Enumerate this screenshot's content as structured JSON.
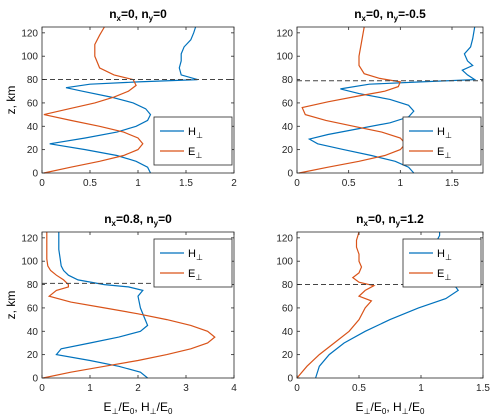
{
  "colors": {
    "H": "#0072BD",
    "E": "#D95319",
    "ref": "#444444",
    "axis": "#262626"
  },
  "chart_data": [
    {
      "type": "line",
      "title": {
        "base1": "n",
        "sub1": "x",
        "mid": "=0, n",
        "sub2": "y",
        "tail": "=0"
      },
      "ylabel": "z, km",
      "xlabel": "",
      "xlim": [
        0,
        2
      ],
      "ylim": [
        0,
        125
      ],
      "xticks": [
        "0",
        "0.5",
        "1",
        "1.5",
        "2"
      ],
      "yticks": [
        "0",
        "20",
        "40",
        "60",
        "80",
        "100",
        "120"
      ],
      "ref_line_z": 80,
      "legend": [
        {
          "base": "H",
          "sub": "⊥"
        },
        {
          "base": "E",
          "sub": "⊥"
        }
      ],
      "series": [
        {
          "key": "H",
          "points": [
            [
              1.13,
              0
            ],
            [
              1.1,
              5
            ],
            [
              0.98,
              10
            ],
            [
              0.78,
              15
            ],
            [
              0.45,
              20
            ],
            [
              0.08,
              25
            ],
            [
              0.45,
              30
            ],
            [
              0.78,
              35
            ],
            [
              0.98,
              40
            ],
            [
              1.1,
              45
            ],
            [
              1.13,
              50
            ],
            [
              1.08,
              55
            ],
            [
              0.95,
              60
            ],
            [
              0.72,
              65
            ],
            [
              0.42,
              70
            ],
            [
              0.25,
              73
            ],
            [
              0.5,
              76
            ],
            [
              1.0,
              78
            ],
            [
              1.62,
              80
            ],
            [
              1.45,
              84
            ],
            [
              1.43,
              90
            ],
            [
              1.45,
              96
            ],
            [
              1.45,
              102
            ],
            [
              1.48,
              108
            ],
            [
              1.55,
              114
            ],
            [
              1.58,
              120
            ],
            [
              1.6,
              125
            ]
          ]
        },
        {
          "key": "E",
          "points": [
            [
              0.02,
              0
            ],
            [
              0.3,
              5
            ],
            [
              0.6,
              10
            ],
            [
              0.85,
              15
            ],
            [
              1.0,
              20
            ],
            [
              1.05,
              25
            ],
            [
              1.0,
              30
            ],
            [
              0.85,
              35
            ],
            [
              0.6,
              40
            ],
            [
              0.3,
              45
            ],
            [
              0.02,
              50
            ],
            [
              0.28,
              55
            ],
            [
              0.55,
              60
            ],
            [
              0.75,
              65
            ],
            [
              0.9,
              70
            ],
            [
              0.98,
              75
            ],
            [
              0.95,
              80
            ],
            [
              0.75,
              84
            ],
            [
              0.6,
              90
            ],
            [
              0.55,
              100
            ],
            [
              0.55,
              110
            ],
            [
              0.6,
              118
            ],
            [
              0.65,
              125
            ]
          ]
        }
      ]
    },
    {
      "type": "line",
      "title": {
        "base1": "n",
        "sub1": "x",
        "mid": "=0, n",
        "sub2": "y",
        "tail": "=-0.5"
      },
      "ylabel": "",
      "xlabel": "",
      "xlim": [
        0,
        1.8
      ],
      "ylim": [
        0,
        125
      ],
      "xticks": [
        "0",
        "0.5",
        "1",
        "1.5"
      ],
      "yticks": [
        "0",
        "20",
        "40",
        "60",
        "80",
        "100",
        "120"
      ],
      "ref_line_z": 79,
      "legend": [
        {
          "base": "H",
          "sub": "⊥"
        },
        {
          "base": "E",
          "sub": "⊥"
        }
      ],
      "series": [
        {
          "key": "H",
          "points": [
            [
              1.13,
              0
            ],
            [
              1.08,
              5
            ],
            [
              0.95,
              10
            ],
            [
              0.72,
              15
            ],
            [
              0.45,
              20
            ],
            [
              0.2,
              25
            ],
            [
              0.12,
              29
            ],
            [
              0.3,
              33
            ],
            [
              0.6,
              38
            ],
            [
              0.9,
              43
            ],
            [
              1.08,
              48
            ],
            [
              1.13,
              53
            ],
            [
              1.08,
              58
            ],
            [
              0.9,
              63
            ],
            [
              0.6,
              68
            ],
            [
              0.42,
              72
            ],
            [
              0.7,
              76
            ],
            [
              1.2,
              78
            ],
            [
              1.72,
              80
            ],
            [
              1.65,
              84
            ],
            [
              1.6,
              88
            ],
            [
              1.7,
              92
            ],
            [
              1.65,
              96
            ],
            [
              1.62,
              102
            ],
            [
              1.68,
              108
            ],
            [
              1.7,
              115
            ],
            [
              1.72,
              125
            ]
          ]
        },
        {
          "key": "E",
          "points": [
            [
              0.02,
              0
            ],
            [
              0.3,
              5
            ],
            [
              0.6,
              10
            ],
            [
              0.85,
              15
            ],
            [
              1.0,
              20
            ],
            [
              1.05,
              25
            ],
            [
              1.0,
              30
            ],
            [
              0.82,
              35
            ],
            [
              0.55,
              40
            ],
            [
              0.28,
              45
            ],
            [
              0.08,
              50
            ],
            [
              0.05,
              56
            ],
            [
              0.3,
              61
            ],
            [
              0.6,
              66
            ],
            [
              0.85,
              70
            ],
            [
              0.98,
              74
            ],
            [
              1.0,
              78
            ],
            [
              0.8,
              81
            ],
            [
              0.65,
              85
            ],
            [
              0.6,
              92
            ],
            [
              0.6,
              100
            ],
            [
              0.62,
              110
            ],
            [
              0.65,
              125
            ]
          ]
        }
      ]
    },
    {
      "type": "line",
      "title": {
        "base1": "n",
        "sub1": "x",
        "mid": "=0.8, n",
        "sub2": "y",
        "tail": "=0"
      },
      "ylabel": "z, km",
      "xlabel": {
        "t1": "E",
        "s1": "⊥",
        "t2": "/E",
        "s2": "0",
        "t3": ", H",
        "s3": "⊥",
        "t4": "/E",
        "s4": "0"
      },
      "xlim": [
        0,
        4
      ],
      "ylim": [
        0,
        125
      ],
      "xticks": [
        "0",
        "1",
        "2",
        "3",
        "4"
      ],
      "yticks": [
        "0",
        "20",
        "40",
        "60",
        "80",
        "100",
        "120"
      ],
      "ref_line_z": 81,
      "legend": [
        {
          "base": "H",
          "sub": "⊥"
        },
        {
          "base": "E",
          "sub": "⊥"
        }
      ],
      "series": [
        {
          "key": "H",
          "points": [
            [
              2.2,
              0
            ],
            [
              2.05,
              5
            ],
            [
              1.6,
              10
            ],
            [
              1.0,
              15
            ],
            [
              0.3,
              20
            ],
            [
              0.4,
              25
            ],
            [
              1.0,
              30
            ],
            [
              1.6,
              35
            ],
            [
              2.05,
              40
            ],
            [
              2.2,
              45
            ],
            [
              2.15,
              50
            ],
            [
              2.05,
              60
            ],
            [
              2.0,
              70
            ],
            [
              2.1,
              75
            ],
            [
              1.8,
              78
            ],
            [
              1.3,
              80
            ],
            [
              0.75,
              84
            ],
            [
              0.55,
              88
            ],
            [
              0.45,
              92
            ],
            [
              0.4,
              96
            ],
            [
              0.38,
              102
            ],
            [
              0.35,
              110
            ],
            [
              0.35,
              118
            ],
            [
              0.35,
              125
            ]
          ]
        },
        {
          "key": "E",
          "points": [
            [
              0.02,
              0
            ],
            [
              0.6,
              5
            ],
            [
              1.3,
              10
            ],
            [
              2.0,
              15
            ],
            [
              2.6,
              20
            ],
            [
              3.1,
              25
            ],
            [
              3.45,
              30
            ],
            [
              3.6,
              35
            ],
            [
              3.45,
              40
            ],
            [
              3.1,
              45
            ],
            [
              2.6,
              50
            ],
            [
              2.0,
              55
            ],
            [
              1.3,
              60
            ],
            [
              0.6,
              65
            ],
            [
              0.15,
              70
            ],
            [
              0.3,
              75
            ],
            [
              0.55,
              78
            ],
            [
              0.55,
              80
            ],
            [
              0.45,
              84
            ],
            [
              0.3,
              88
            ],
            [
              0.18,
              92
            ],
            [
              0.12,
              96
            ],
            [
              0.1,
              102
            ],
            [
              0.1,
              110
            ],
            [
              0.1,
              118
            ],
            [
              0.1,
              125
            ]
          ]
        }
      ]
    },
    {
      "type": "line",
      "title": {
        "base1": "n",
        "sub1": "x",
        "mid": "=0, n",
        "sub2": "y",
        "tail": "=1.2"
      },
      "ylabel": "",
      "xlabel": {
        "t1": "E",
        "s1": "⊥",
        "t2": "/E",
        "s2": "0",
        "t3": ", H",
        "s3": "⊥",
        "t4": "/E",
        "s4": "0"
      },
      "xlim": [
        0,
        1.5
      ],
      "ylim": [
        0,
        125
      ],
      "xticks": [
        "0",
        "0.5",
        "1",
        "1.5"
      ],
      "yticks": [
        "0",
        "20",
        "40",
        "60",
        "80",
        "100",
        "120"
      ],
      "ref_line_z": 80,
      "legend": [
        {
          "base": "H",
          "sub": "⊥"
        },
        {
          "base": "E",
          "sub": "⊥"
        }
      ],
      "series": [
        {
          "key": "H",
          "points": [
            [
              0.15,
              0
            ],
            [
              0.18,
              10
            ],
            [
              0.26,
              20
            ],
            [
              0.38,
              30
            ],
            [
              0.55,
              40
            ],
            [
              0.75,
              50
            ],
            [
              0.98,
              60
            ],
            [
              1.2,
              68
            ],
            [
              1.3,
              75
            ],
            [
              1.28,
              78
            ],
            [
              1.2,
              81
            ],
            [
              1.1,
              86
            ],
            [
              1.05,
              92
            ],
            [
              1.1,
              98
            ],
            [
              1.05,
              104
            ],
            [
              1.1,
              110
            ],
            [
              1.12,
              116
            ],
            [
              1.15,
              122
            ],
            [
              1.15,
              125
            ]
          ]
        },
        {
          "key": "E",
          "points": [
            [
              0.0,
              0
            ],
            [
              0.08,
              10
            ],
            [
              0.18,
              20
            ],
            [
              0.3,
              30
            ],
            [
              0.42,
              40
            ],
            [
              0.5,
              50
            ],
            [
              0.55,
              60
            ],
            [
              0.6,
              66
            ],
            [
              0.5,
              70
            ],
            [
              0.55,
              75
            ],
            [
              0.62,
              79
            ],
            [
              0.5,
              82
            ],
            [
              0.45,
              86
            ],
            [
              0.5,
              90
            ],
            [
              0.52,
              95
            ],
            [
              0.5,
              100
            ],
            [
              0.5,
              106
            ],
            [
              0.48,
              112
            ],
            [
              0.48,
              118
            ],
            [
              0.5,
              125
            ]
          ]
        }
      ]
    }
  ]
}
